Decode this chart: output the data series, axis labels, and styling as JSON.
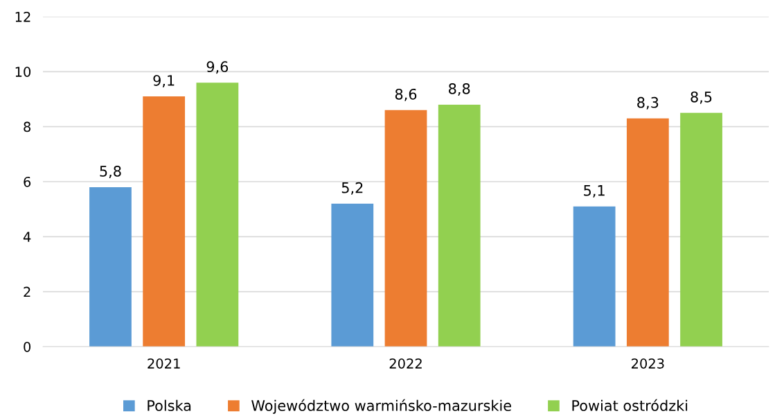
{
  "chart_data": {
    "type": "bar",
    "categories": [
      "2021",
      "2022",
      "2023"
    ],
    "series": [
      {
        "name": "Polska",
        "color": "#5b9bd5",
        "values": [
          5.8,
          5.2,
          5.1
        ],
        "value_labels": [
          "5,8",
          "5,2",
          "5,1"
        ]
      },
      {
        "name": "Województwo warmińsko-mazurskie",
        "color": "#ed7d31",
        "values": [
          9.1,
          8.6,
          8.3
        ],
        "value_labels": [
          "9,1",
          "8,6",
          "8,3"
        ]
      },
      {
        "name": "Powiat ostródzki",
        "color": "#92d050",
        "values": [
          9.6,
          8.8,
          8.5
        ],
        "value_labels": [
          "9,6",
          "8,8",
          "8,5"
        ]
      }
    ],
    "ylim": [
      0,
      12
    ],
    "yticks": [
      0,
      2,
      4,
      6,
      8,
      10,
      12
    ],
    "grid": "y",
    "legend": "bottom"
  }
}
